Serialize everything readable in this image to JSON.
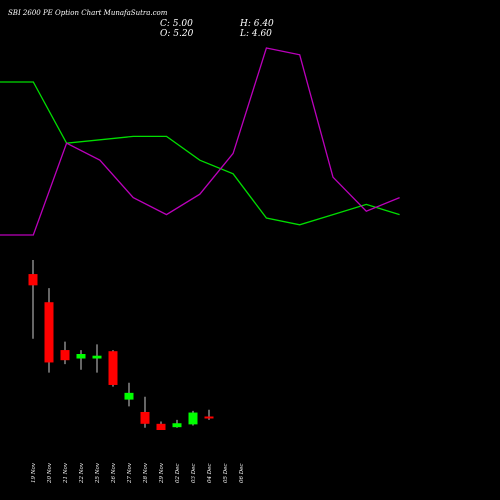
{
  "header": {
    "title": "SBI 2600  PE Option  Chart MunafaSutra.com",
    "close_label": "C: 5.00",
    "high_label": "H: 6.40",
    "open_label": "O: 5.20",
    "low_label": "L: 4.60"
  },
  "colors": {
    "background": "#000000",
    "bullish": "#00ff00",
    "bearish": "#ff0000",
    "line_green": "#00dd00",
    "line_magenta": "#bb00bb",
    "wick": "#ffffff"
  },
  "chart_data": {
    "type": "candlestick",
    "dates": [
      "19 Nov",
      "20 Nov",
      "21 Nov",
      "22 Nov",
      "25 Nov",
      "26 Nov",
      "27 Nov",
      "28 Nov",
      "29 Nov",
      "02 Dec",
      "03 Dec",
      "04 Dec",
      "05 Dec",
      "06 Dec"
    ],
    "candles": [
      {
        "date": "19 Nov",
        "open": 30.5,
        "high": 33.0,
        "low": 19.0,
        "close": 28.5
      },
      {
        "date": "20 Nov",
        "open": 25.5,
        "high": 28.0,
        "low": 13.0,
        "close": 14.8
      },
      {
        "date": "21 Nov",
        "open": 17.0,
        "high": 18.5,
        "low": 14.5,
        "close": 15.2
      },
      {
        "date": "22 Nov",
        "open": 15.5,
        "high": 17.0,
        "low": 13.5,
        "close": 16.3
      },
      {
        "date": "25 Nov",
        "open": 15.5,
        "high": 18.0,
        "low": 13.0,
        "close": 16.0
      },
      {
        "date": "26 Nov",
        "open": 16.8,
        "high": 17.0,
        "low": 10.5,
        "close": 10.8
      },
      {
        "date": "27 Nov",
        "open": 8.2,
        "high": 11.2,
        "low": 7.0,
        "close": 9.4
      },
      {
        "date": "28 Nov",
        "open": 6.0,
        "high": 8.7,
        "low": 3.2,
        "close": 3.9
      },
      {
        "date": "29 Nov",
        "open": 3.9,
        "high": 4.3,
        "low": 2.8,
        "close": 2.8
      },
      {
        "date": "02 Dec",
        "open": 3.3,
        "high": 4.6,
        "low": 3.2,
        "close": 4.0
      },
      {
        "date": "03 Dec",
        "open": 3.8,
        "high": 6.2,
        "low": 3.6,
        "close": 5.9
      },
      {
        "date": "04 Dec",
        "open": 5.2,
        "high": 6.4,
        "low": 4.6,
        "close": 5.0
      }
    ],
    "line_green": [
      100,
      100,
      82,
      83,
      84,
      84,
      77,
      73,
      60,
      58,
      61,
      64,
      61
    ],
    "line_magenta": [
      55,
      55,
      82,
      77,
      66,
      61,
      67,
      79,
      110,
      108,
      72,
      62,
      66
    ]
  }
}
